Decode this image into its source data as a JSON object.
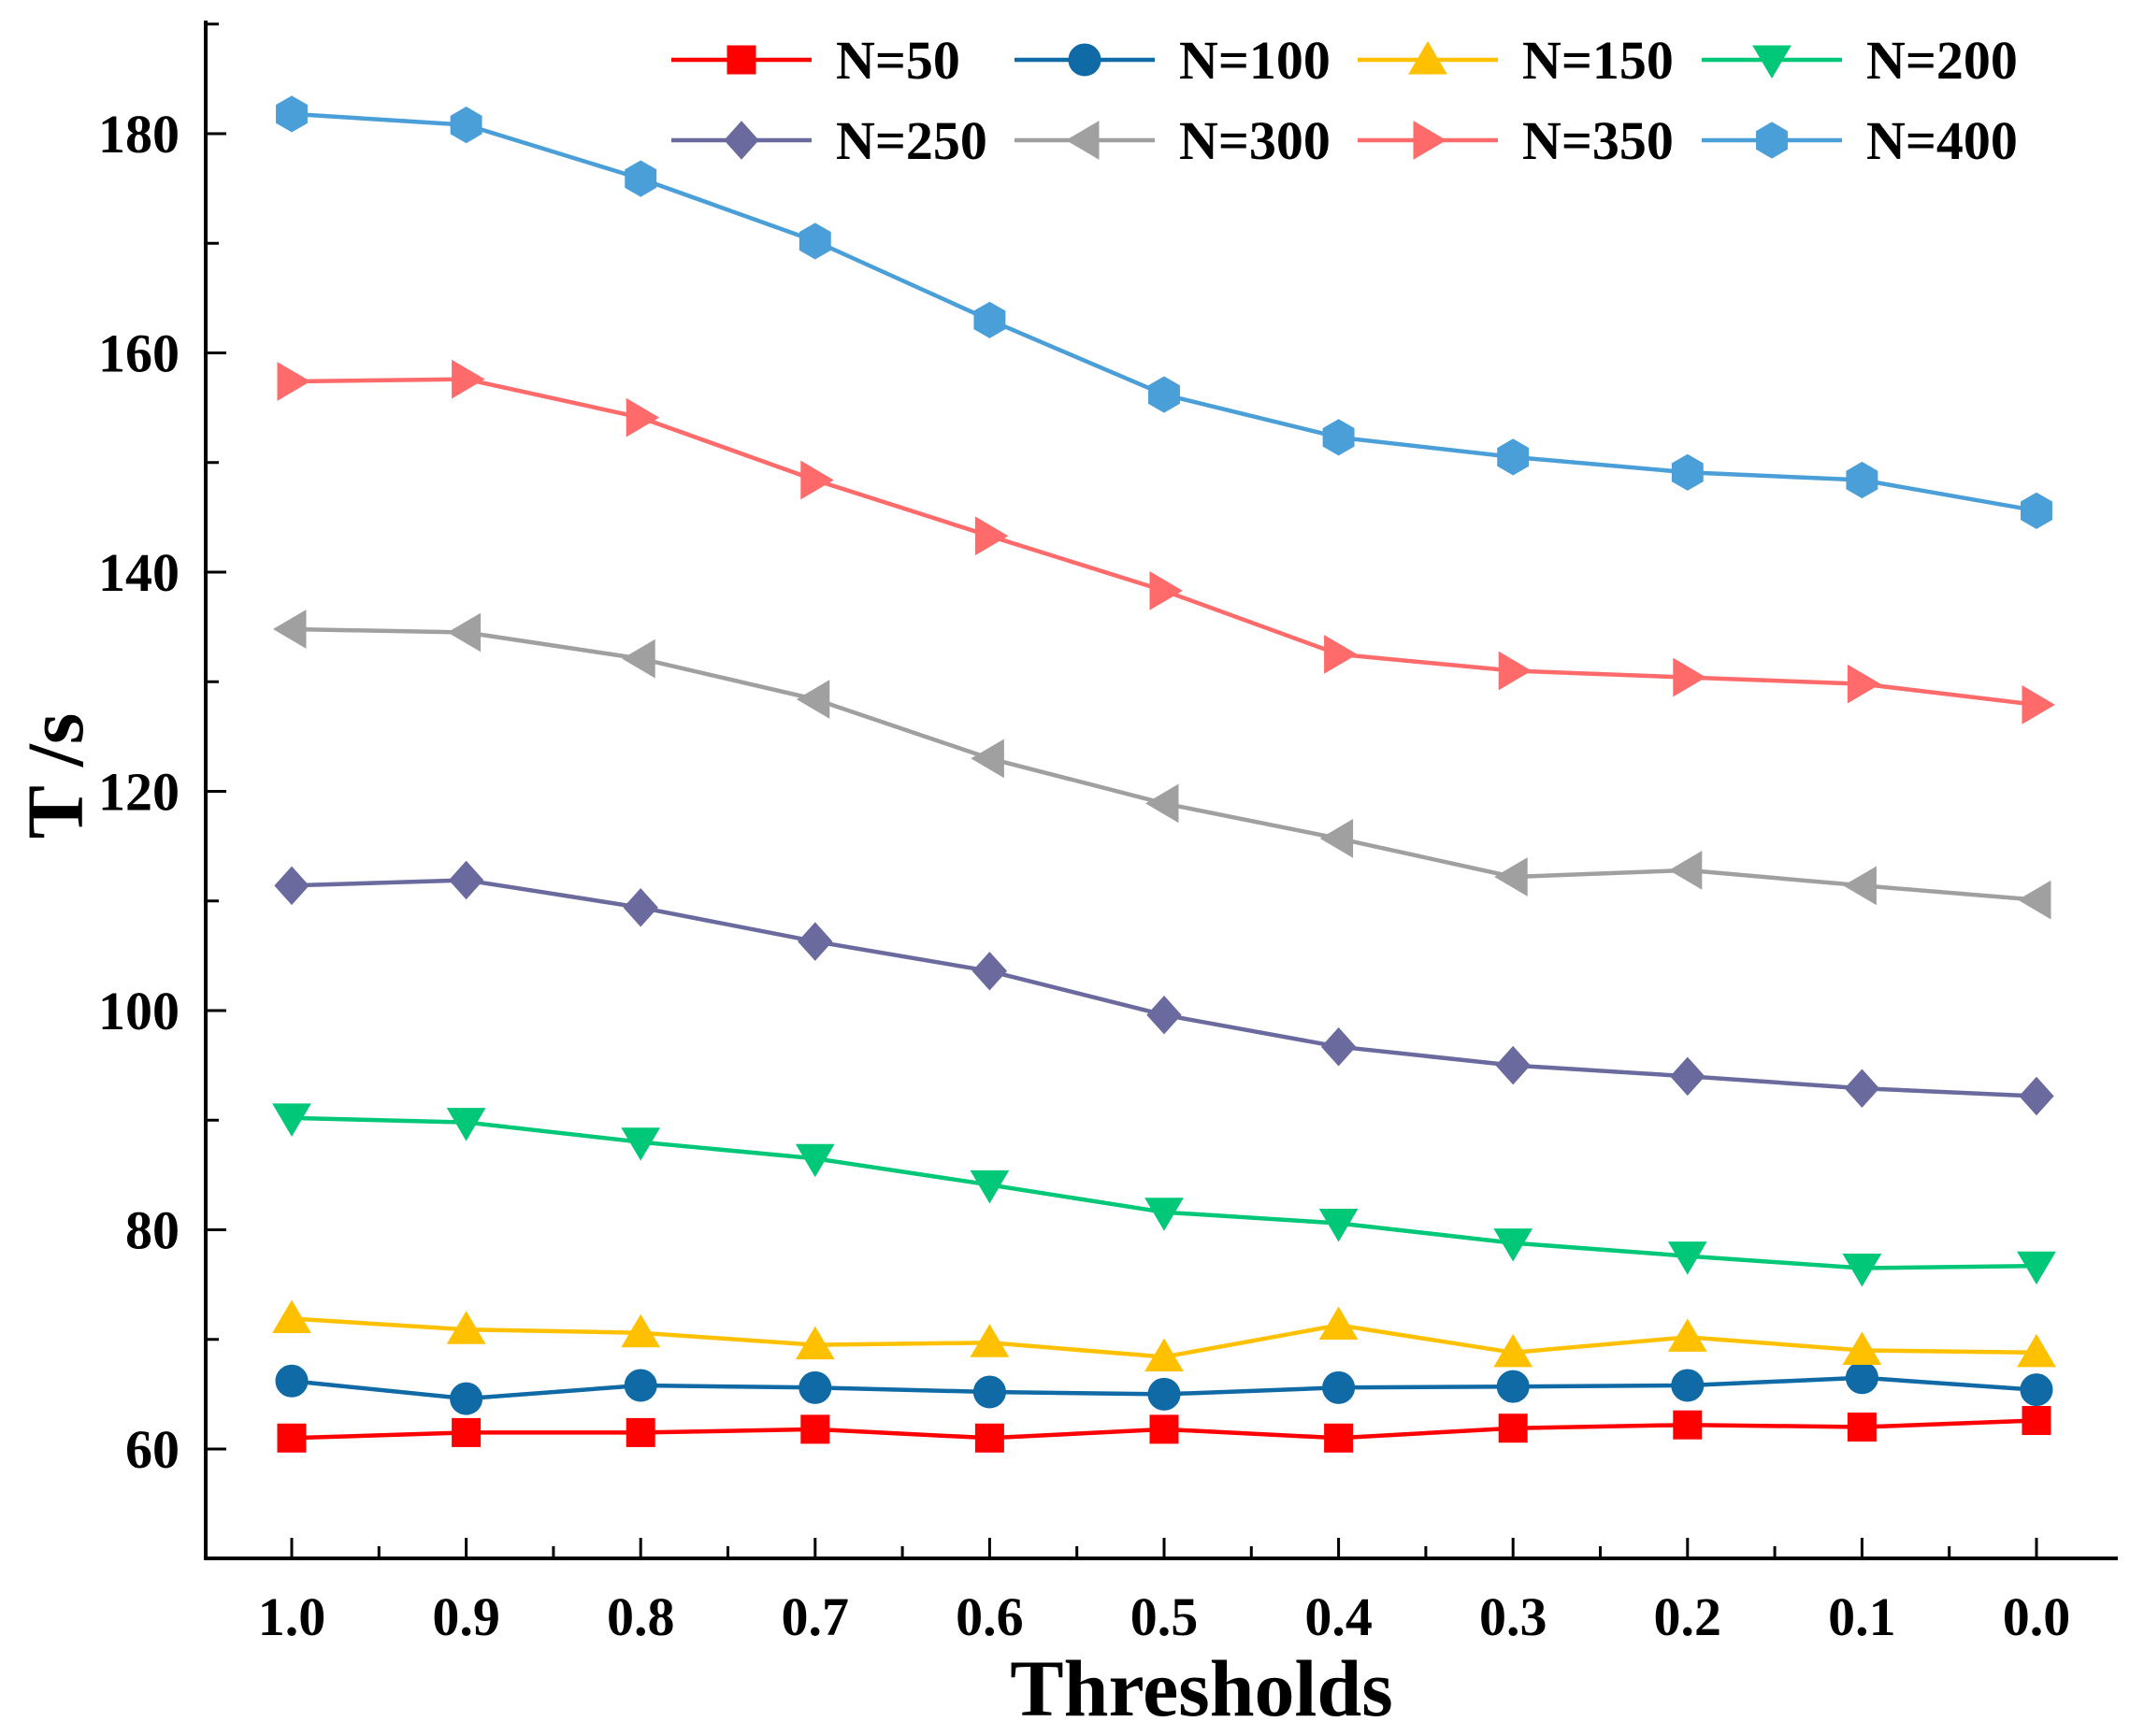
{
  "chart_data": {
    "type": "line",
    "title": "",
    "xlabel": "Thresholds",
    "ylabel": "T /s",
    "x": [
      "1.0",
      "0.9",
      "0.8",
      "0.7",
      "0.6",
      "0.5",
      "0.4",
      "0.3",
      "0.2",
      "0.1",
      "0.0"
    ],
    "ylim": [
      50,
      190
    ],
    "yticks": [
      60,
      80,
      100,
      120,
      140,
      160,
      180
    ],
    "legend_position": "top",
    "series": [
      {
        "name": "N=50",
        "color": "#ff0000",
        "marker": "square",
        "values": [
          61.0,
          61.5,
          61.5,
          61.8,
          61.0,
          61.8,
          61.0,
          61.9,
          62.2,
          62.0,
          62.6
        ]
      },
      {
        "name": "N=100",
        "color": "#0f6aa5",
        "marker": "circle",
        "values": [
          66.2,
          64.6,
          65.8,
          65.6,
          65.2,
          65.0,
          65.6,
          65.7,
          65.8,
          66.5,
          65.4
        ]
      },
      {
        "name": "N=150",
        "color": "#ffc000",
        "marker": "triangle-up",
        "values": [
          71.9,
          70.9,
          70.6,
          69.5,
          69.7,
          68.4,
          71.3,
          68.8,
          70.2,
          69.0,
          68.8
        ]
      },
      {
        "name": "N=200",
        "color": "#00c878",
        "marker": "triangle-down",
        "values": [
          90.2,
          89.8,
          88.0,
          86.5,
          84.1,
          81.6,
          80.6,
          78.8,
          77.6,
          76.5,
          76.7
        ]
      },
      {
        "name": "N=250",
        "color": "#6a6a9e",
        "marker": "diamond",
        "values": [
          111.4,
          111.9,
          109.4,
          106.3,
          103.6,
          99.6,
          96.7,
          95.0,
          94.0,
          92.9,
          92.2
        ]
      },
      {
        "name": "N=300",
        "color": "#a0a0a0",
        "marker": "triangle-left",
        "values": [
          134.8,
          134.5,
          132.1,
          128.4,
          123.0,
          118.9,
          115.7,
          112.2,
          112.8,
          111.4,
          110.1
        ]
      },
      {
        "name": "N=350",
        "color": "#ff6a6a",
        "marker": "triangle-right",
        "values": [
          157.4,
          157.6,
          154.1,
          148.4,
          143.3,
          138.3,
          132.5,
          131.0,
          130.4,
          129.8,
          127.9
        ]
      },
      {
        "name": "N=400",
        "color": "#4a9fd8",
        "marker": "hexagon",
        "values": [
          181.8,
          180.8,
          175.9,
          170.2,
          163.0,
          156.2,
          152.3,
          150.5,
          149.1,
          148.4,
          145.6
        ]
      }
    ]
  }
}
